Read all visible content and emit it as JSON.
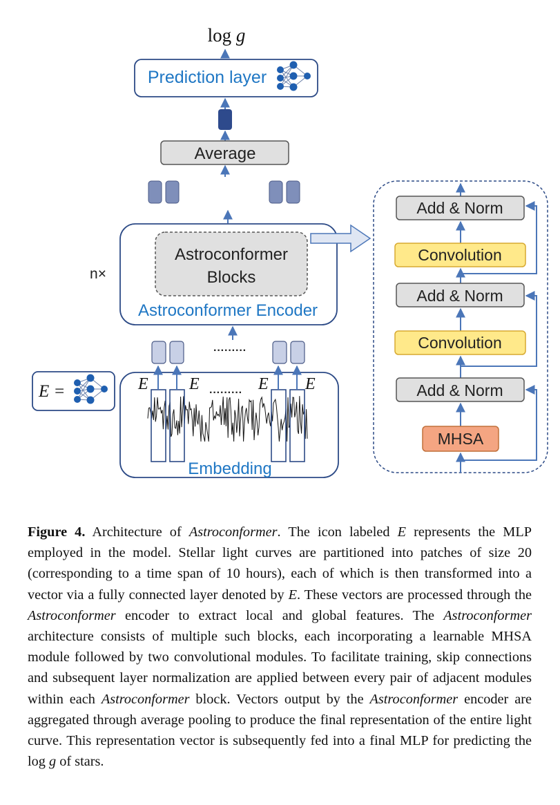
{
  "diagram": {
    "output_label_main": "log ",
    "output_label_var": "g",
    "prediction_layer": "Prediction layer",
    "average": "Average",
    "encoder_block_line1": "Astroconformer",
    "encoder_block_line2": "Blocks",
    "encoder_label": "Astroconformer Encoder",
    "repeat_label": "n×",
    "ellipsis": "·········",
    "e_symbol": "E",
    "e_equals": "E =",
    "embedding_label": "Embedding",
    "block_modules": {
      "add_norm": "Add & Norm",
      "convolution": "Convolution",
      "mhsa": "MHSA"
    },
    "colors": {
      "blue_text": "#1f77c4",
      "outline": "#2c4a86",
      "arrow": "#4b76b8",
      "gray_fill": "#e0e0e0",
      "conv_fill": "#ffe98a",
      "mhsa_fill": "#f4a582",
      "token_dark": "#7f8fba",
      "token_light": "#c8d0e6",
      "pooled": "#2e4a8c"
    },
    "icons": [
      "neural-network-icon"
    ]
  },
  "caption": {
    "label": "Figure 4.",
    "segments": [
      {
        "t": " Architecture of ",
        "i": false
      },
      {
        "t": "Astroconformer",
        "i": true
      },
      {
        "t": ". The icon labeled ",
        "i": false
      },
      {
        "t": "E",
        "i": true
      },
      {
        "t": " represents the MLP employed in the model. Stellar light curves are partitioned into patches of size 20 (corresponding to a time span of 10 hours), each of which is then transformed into a vector via a fully connected layer denoted by ",
        "i": false
      },
      {
        "t": "E",
        "i": true
      },
      {
        "t": ". These vectors are processed through the ",
        "i": false
      },
      {
        "t": "Astroconformer",
        "i": true
      },
      {
        "t": " encoder to extract local and global features. The ",
        "i": false
      },
      {
        "t": "Astroconformer",
        "i": true
      },
      {
        "t": " architecture consists of multiple such blocks, each incorporating a learnable MHSA module followed by two convolutional modules. To facilitate training, skip connections and subsequent layer normalization are applied between every pair of adjacent modules within each ",
        "i": false
      },
      {
        "t": "Astroconformer",
        "i": true
      },
      {
        "t": " block. Vectors output by the ",
        "i": false
      },
      {
        "t": "Astroconformer",
        "i": true
      },
      {
        "t": " encoder are aggregated through average pooling to produce the final representation of the entire light curve. This representation vector is subsequently fed into a final MLP for predicting the log ",
        "i": false
      },
      {
        "t": "g",
        "i": true
      },
      {
        "t": " of stars.",
        "i": false
      }
    ]
  }
}
